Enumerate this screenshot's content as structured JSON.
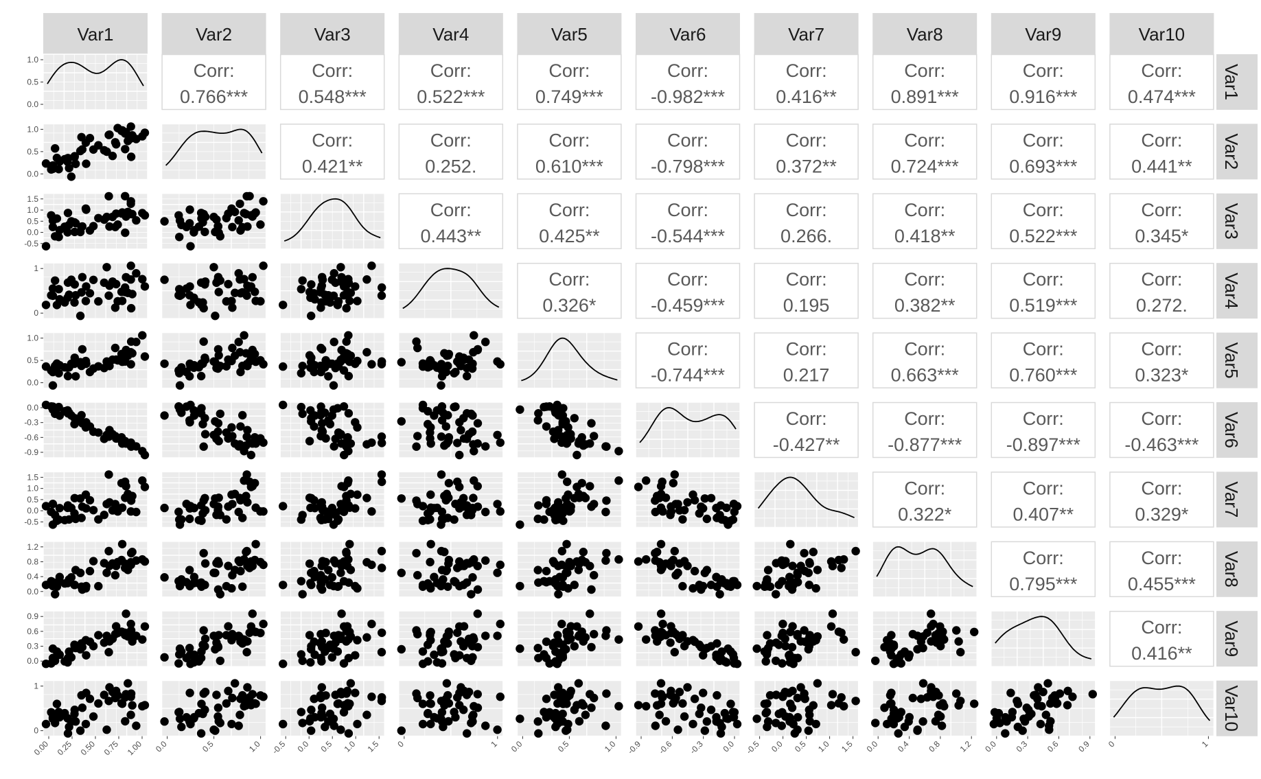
{
  "variables": [
    "Var1",
    "Var2",
    "Var3",
    "Var4",
    "Var5",
    "Var6",
    "Var7",
    "Var8",
    "Var9",
    "Var10"
  ],
  "chart_data": {
    "type": "scatter-matrix",
    "title": "",
    "corr_label": "Corr:",
    "correlations": {
      "0-1": "0.766***",
      "0-2": "0.548***",
      "0-3": "0.522***",
      "0-4": "0.749***",
      "0-5": "-0.982***",
      "0-6": "0.416**",
      "0-7": "0.891***",
      "0-8": "0.916***",
      "0-9": "0.474***",
      "1-2": "0.421**",
      "1-3": "0.252.",
      "1-4": "0.610***",
      "1-5": "-0.798***",
      "1-6": "0.372**",
      "1-7": "0.724***",
      "1-8": "0.693***",
      "1-9": "0.441**",
      "2-3": "0.443**",
      "2-4": "0.425**",
      "2-5": "-0.544***",
      "2-6": "0.266.",
      "2-7": "0.418**",
      "2-8": "0.522***",
      "2-9": "0.345*",
      "3-4": "0.326*",
      "3-5": "-0.459***",
      "3-6": "0.195",
      "3-7": "0.382**",
      "3-8": "0.519***",
      "3-9": "0.272.",
      "4-5": "-0.744***",
      "4-6": "0.217",
      "4-7": "0.663***",
      "4-8": "0.760***",
      "4-9": "0.323*",
      "5-6": "-0.427**",
      "5-7": "-0.877***",
      "5-8": "-0.897***",
      "5-9": "-0.463***",
      "6-7": "0.322*",
      "6-8": "0.407**",
      "6-9": "0.329*",
      "7-8": "0.795***",
      "7-9": "0.455***",
      "8-9": "0.416**"
    },
    "y_ticks": {
      "Var1": [
        "1.0",
        "0.5",
        "0.0"
      ],
      "Var2": [
        "1.0",
        "0.5",
        "0.0"
      ],
      "Var3": [
        "1.5",
        "1.0",
        "0.5",
        "0.0",
        "-0.5"
      ],
      "Var4": [
        "1",
        "0"
      ],
      "Var5": [
        "1.0",
        "0.5",
        "0.0"
      ],
      "Var6": [
        "0.0",
        "-0.3",
        "-0.6",
        "-0.9"
      ],
      "Var7": [
        "1.5",
        "1.0",
        "0.5",
        "0.0",
        "-0.5"
      ],
      "Var8": [
        "1.2",
        "0.8",
        "0.4",
        "0.0"
      ],
      "Var9": [
        "0.9",
        "0.6",
        "0.3",
        "0.0"
      ],
      "Var10": [
        "1",
        "0"
      ]
    },
    "x_ticks": {
      "Var1": [
        "0.00",
        "0.25",
        "0.50",
        "0.75",
        "1.00"
      ],
      "Var2": [
        "0.0",
        "0.5",
        "1.0"
      ],
      "Var3": [
        "-0.5",
        "0.0",
        "0.5",
        "1.0",
        "1.5"
      ],
      "Var4": [
        "0",
        "1"
      ],
      "Var5": [
        "0.0",
        "0.5",
        "1.0"
      ],
      "Var6": [
        "-0.9",
        "-0.6",
        "-0.3",
        "0.0"
      ],
      "Var7": [
        "-0.5",
        "0.0",
        "0.5",
        "1.0",
        "1.5"
      ],
      "Var8": [
        "0.0",
        "0.4",
        "0.8",
        "1.2"
      ],
      "Var9": [
        "0.0",
        "0.3",
        "0.6",
        "0.9"
      ],
      "Var10": [
        "0",
        "1"
      ]
    },
    "colors": {
      "strip_bg": "#d9d9d9",
      "panel_bg": "#ebebeb",
      "grid": "#ffffff",
      "point": "#000000",
      "corr_text": "#595959",
      "corr_border": "#d9d9d9"
    }
  }
}
